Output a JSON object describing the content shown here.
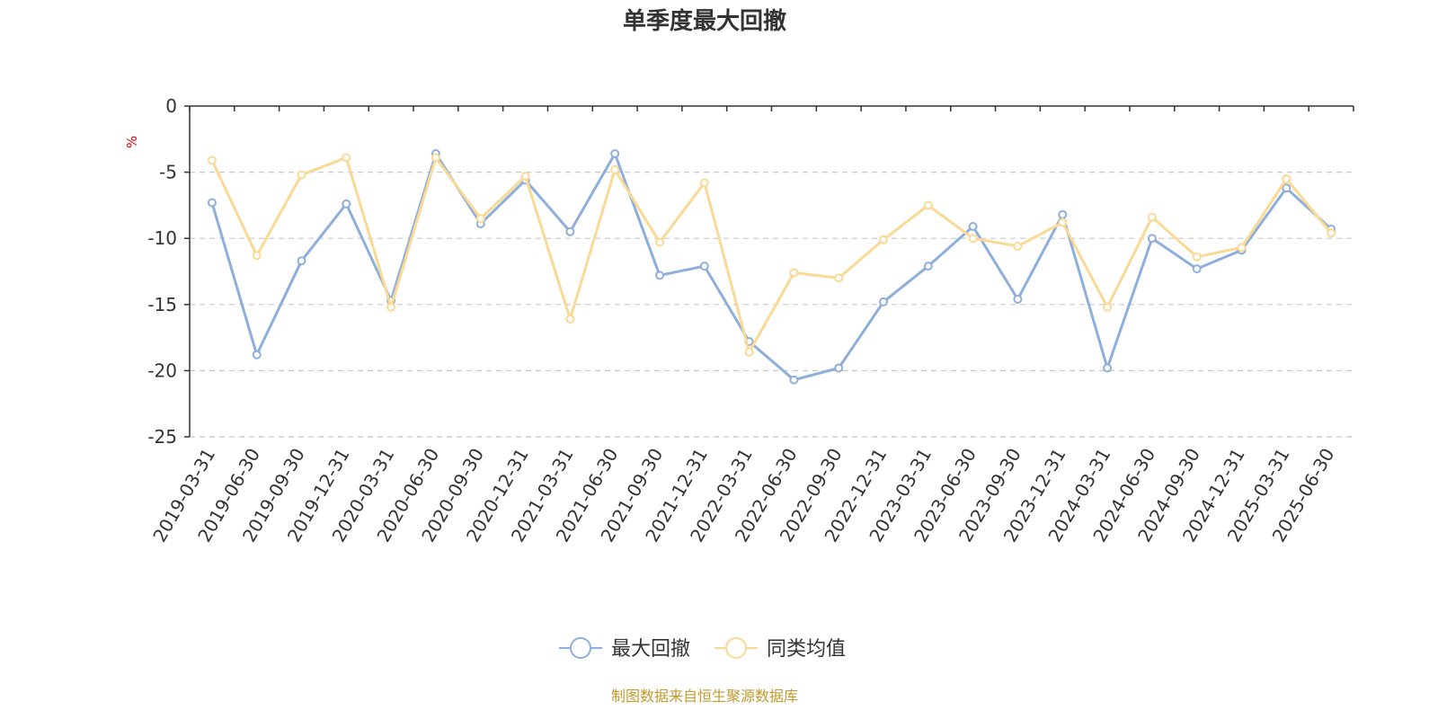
{
  "colors": {
    "series_1": "#8eaedb",
    "series_2": "#fad995",
    "unit": "#e8000b",
    "footer": "#c49a2c",
    "axis": "#333333",
    "grid": "#c8c8c8"
  },
  "footer_text": "制图数据来自恒生聚源数据库",
  "chart_data": {
    "type": "line",
    "title": "单季度最大回撤",
    "ylabel": "%",
    "xlabel": "",
    "ylim": [
      -25,
      0
    ],
    "yticks": [
      0,
      -5,
      -10,
      -15,
      -20,
      -25
    ],
    "grid": true,
    "legend_position": "bottom-center",
    "categories": [
      "2019-03-31",
      "2019-06-30",
      "2019-09-30",
      "2019-12-31",
      "2020-03-31",
      "2020-06-30",
      "2020-09-30",
      "2020-12-31",
      "2021-03-31",
      "2021-06-30",
      "2021-09-30",
      "2021-12-31",
      "2022-03-31",
      "2022-06-30",
      "2022-09-30",
      "2022-12-31",
      "2023-03-31",
      "2023-06-30",
      "2023-09-30",
      "2023-12-31",
      "2024-03-31",
      "2024-06-30",
      "2024-09-30",
      "2024-12-31",
      "2025-03-31",
      "2025-06-30"
    ],
    "series": [
      {
        "name": "最大回撤",
        "values": [
          -7.3,
          -18.8,
          -11.7,
          -7.4,
          -14.7,
          -3.6,
          -8.9,
          -5.6,
          -9.5,
          -3.6,
          -12.8,
          -12.1,
          -17.8,
          -20.7,
          -19.8,
          -14.8,
          -12.1,
          -9.1,
          -14.6,
          -8.2,
          -19.8,
          -10.0,
          -12.3,
          -10.9,
          -6.2,
          -9.3
        ]
      },
      {
        "name": "同类均值",
        "values": [
          -4.1,
          -11.3,
          -5.2,
          -3.9,
          -15.2,
          -3.9,
          -8.5,
          -5.3,
          -16.1,
          -4.8,
          -10.3,
          -5.8,
          -18.6,
          -12.6,
          -13.0,
          -10.1,
          -7.5,
          -10.0,
          -10.6,
          -8.8,
          -15.2,
          -8.4,
          -11.4,
          -10.7,
          -5.5,
          -9.6
        ]
      }
    ]
  }
}
